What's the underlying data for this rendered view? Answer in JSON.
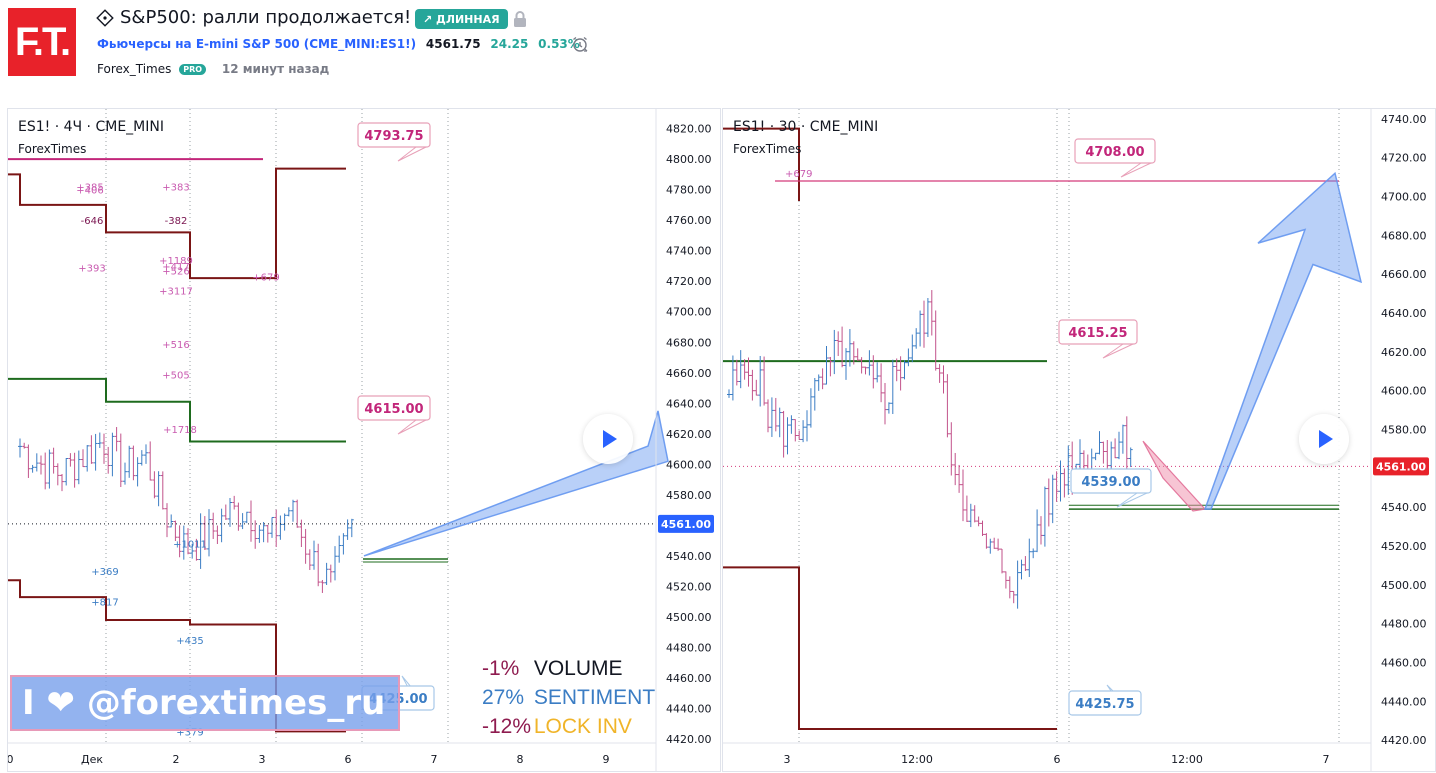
{
  "header": {
    "logo_text": "F.T.",
    "title": "S&P500: ралли продолжается!",
    "badge": "↗ ДЛИННАЯ",
    "symbol_name": "Фьючерсы на E-mini S&P 500 (CME_MINI:ES1!)",
    "price": "4561.75",
    "change": "24.25",
    "change_pct": "0.53%",
    "author": "Forex_Times",
    "author_badge": "PRO",
    "time_ago": "12 минут назад",
    "colors": {
      "logo": "#e8222a",
      "badge": "#26a69a",
      "link": "#2962ff"
    }
  },
  "left_panel": {
    "title": "ES1! · 4Ч · CME_MINI",
    "indicator": "ForexTimes",
    "watermark": "I ❤ @forextimes_ru",
    "stats": [
      {
        "value": "-1%",
        "label": "VOLUME",
        "value_color": "#8e1b4f",
        "label_color": "#131722"
      },
      {
        "value": "27%",
        "label": "SENTIMENT",
        "value_color": "#3b7dc4",
        "label_color": "#3b7dc4"
      },
      {
        "value": "-12%",
        "label": "LOCK INV",
        "value_color": "#8e1b4f",
        "label_color": "#f0b429"
      }
    ]
  },
  "right_panel": {
    "title": "ES1! · 30 · CME_MINI",
    "indicator": "ForexTimes"
  },
  "chart_data": [
    {
      "type": "line",
      "title": "ES1! · 4Ч · CME_MINI",
      "ylim": [
        4420,
        4825
      ],
      "y_ticks": [
        "4820.00",
        "4800.00",
        "4780.00",
        "4760.00",
        "4740.00",
        "4720.00",
        "4700.00",
        "4680.00",
        "4660.00",
        "4640.00",
        "4620.00",
        "4600.00",
        "4580.00",
        "4560.00",
        "4540.00",
        "4520.00",
        "4500.00",
        "4480.00",
        "4460.00",
        "4440.00",
        "4420.00"
      ],
      "x_ticks": [
        "0",
        "Дек",
        "2",
        "3",
        "6",
        "7",
        "8",
        "9"
      ],
      "current_price_label": "4561.00",
      "annotations": [
        "4793.75",
        "4615.00",
        "4425.00"
      ],
      "upper_levels": [
        4790,
        4770,
        4752,
        4722,
        4793.75
      ],
      "middle_levels": [
        4656,
        4641,
        4620,
        4615
      ],
      "lower_levels": [
        4524,
        4513,
        4498,
        4495,
        4425
      ],
      "volume_labels_upper": [
        "+385",
        "+406",
        "-646",
        "+393",
        "+383",
        "-382",
        "+1189",
        "+417",
        "+526",
        "+3117",
        "+516",
        "+505",
        "+1718",
        "+679"
      ],
      "volume_labels_lower": [
        "+1011",
        "+369",
        "+817",
        "+435",
        "+379"
      ],
      "current_price": 4561
    },
    {
      "type": "line",
      "title": "ES1! · 30 · CME_MINI",
      "ylim": [
        4418,
        4742
      ],
      "y_ticks": [
        "4740.00",
        "4720.00",
        "4700.00",
        "4680.00",
        "4660.00",
        "4640.00",
        "4620.00",
        "4600.00",
        "4580.00",
        "4560.00",
        "4540.00",
        "4520.00",
        "4500.00",
        "4480.00",
        "4460.00",
        "4440.00",
        "4420.00"
      ],
      "x_ticks": [
        "3",
        "12:00",
        "6",
        "12:00",
        "7"
      ],
      "current_price_label": "4561.00",
      "annotations": [
        "4708.00",
        "4615.25",
        "4539.00",
        "4425.75"
      ],
      "levels": {
        "top": 4708,
        "upper": 4735,
        "middle": 4615.25,
        "target": 4539,
        "bottom": 4425.75,
        "lower_step": 4509
      },
      "volume_labels": [
        "+679"
      ],
      "current_price": 4561
    }
  ]
}
